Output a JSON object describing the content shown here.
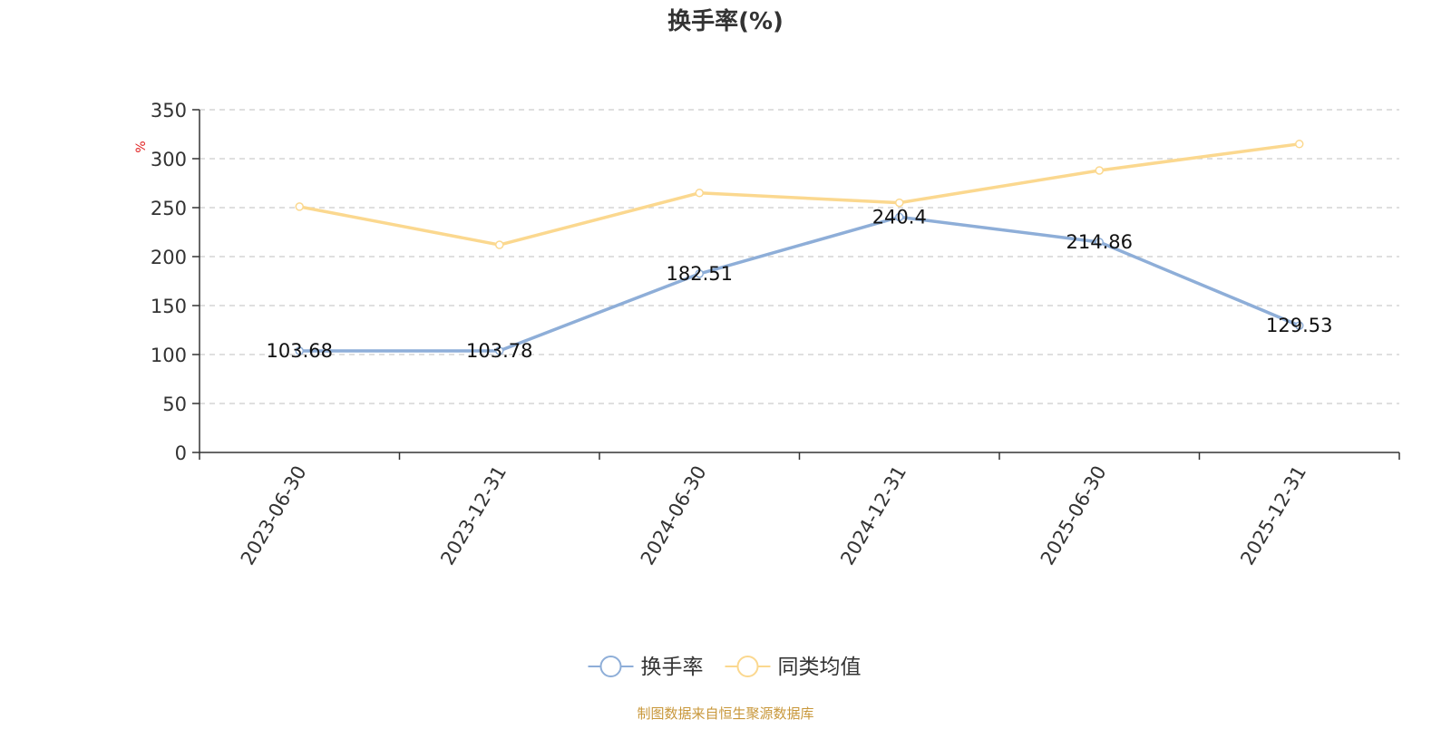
{
  "chart_data": {
    "type": "line",
    "title": "换手率(%)",
    "ylabel": "%",
    "xlabel": "",
    "ylim": [
      0,
      350
    ],
    "yticks": [
      0,
      50,
      100,
      150,
      200,
      250,
      300,
      350
    ],
    "grid": true,
    "legend_position": "bottom-center",
    "categories": [
      "2023-06-30",
      "2023-12-31",
      "2024-06-30",
      "2024-12-31",
      "2025-06-30",
      "2025-12-31"
    ],
    "series": [
      {
        "name": "换手率",
        "color": "#8eaed8",
        "values": [
          103.68,
          103.78,
          182.51,
          240.4,
          214.86,
          129.53
        ],
        "labels": [
          "103.68",
          "103.78",
          "182.51",
          "240.4",
          "214.86",
          "129.53"
        ]
      },
      {
        "name": "同类均值",
        "color": "#fbd88f",
        "values": [
          251,
          212,
          265,
          255,
          288,
          315
        ]
      }
    ],
    "source_note": "制图数据来自恒生聚源数据库"
  }
}
